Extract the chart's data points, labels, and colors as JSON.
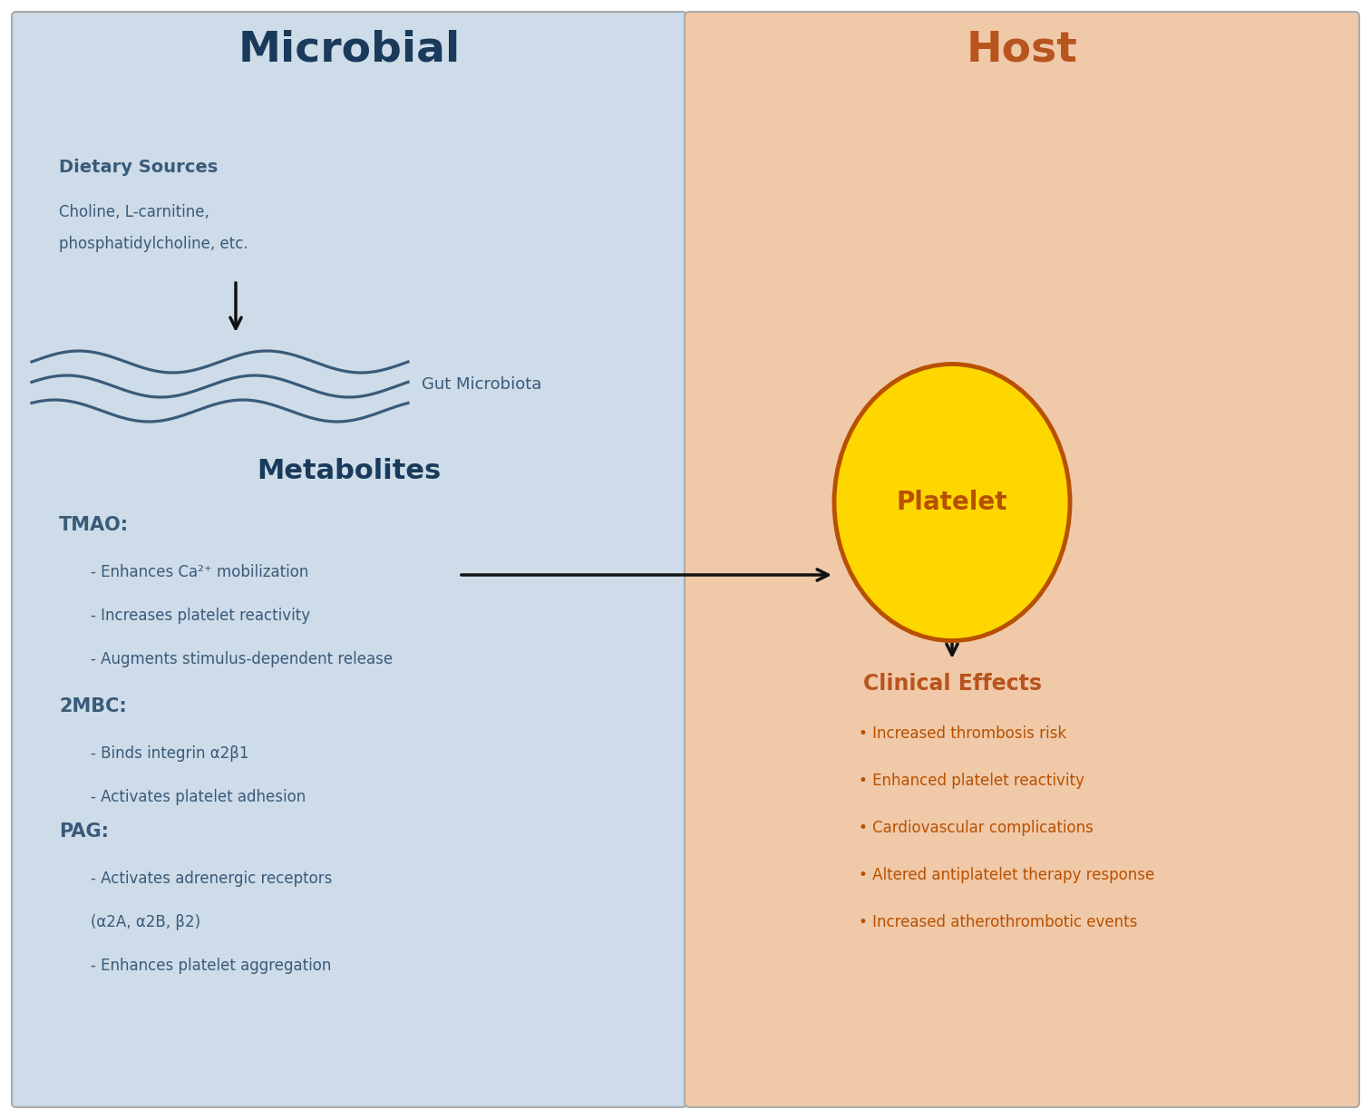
{
  "left_bg_color": "#cddce8",
  "right_bg_color": "#f0c9a8",
  "left_title": "Microbial",
  "right_title": "Host",
  "left_title_color": "#1a3a5c",
  "right_title_color": "#b8541e",
  "dietary_sources_label": "Dietary Sources",
  "dietary_sources_sub": "Choline, L-carnitine,\nphosphatidylcholine, etc.",
  "dietary_color": "#3a5a7a",
  "gut_microbiota_label": "Gut Microbiota",
  "gut_color": "#3a5a7a",
  "metabolites_title": "Metabolites",
  "metabolites_color": "#1a3a5c",
  "tmao_text": "TMAO:",
  "tmao_bullets": [
    "- Enhances Ca²⁺ mobilization",
    "- Increases platelet reactivity",
    "- Augments stimulus-dependent release"
  ],
  "2mbc_text": "2MBC:",
  "2mbc_bullets": [
    "- Binds integrin α2β1",
    "- Activates platelet adhesion"
  ],
  "pag_text": "PAG:",
  "pag_bullets": [
    "- Activates adrenergic receptors",
    "(α2A, α2B, β2)",
    "- Enhances platelet aggregation"
  ],
  "bullet_text_color": "#3a5a7a",
  "platelet_fill": "#ffd700",
  "platelet_edge": "#b85000",
  "platelet_label": "Platelet",
  "platelet_label_color": "#b85000",
  "clinical_effects_title": "Clinical Effects",
  "clinical_effects_color": "#b8541e",
  "clinical_bullets": [
    "• Increased thrombosis risk",
    "• Enhanced platelet reactivity",
    "• Cardiovascular complications",
    "• Altered antiplatelet therapy response",
    "• Increased atherothrombotic events"
  ],
  "clinical_bullet_color": "#b85000",
  "wave_color": "#3a5a7a",
  "arrow_color": "#111111",
  "border_color": "#aaaaaa",
  "fig_width": 15.12,
  "fig_height": 12.34,
  "dpi": 100
}
